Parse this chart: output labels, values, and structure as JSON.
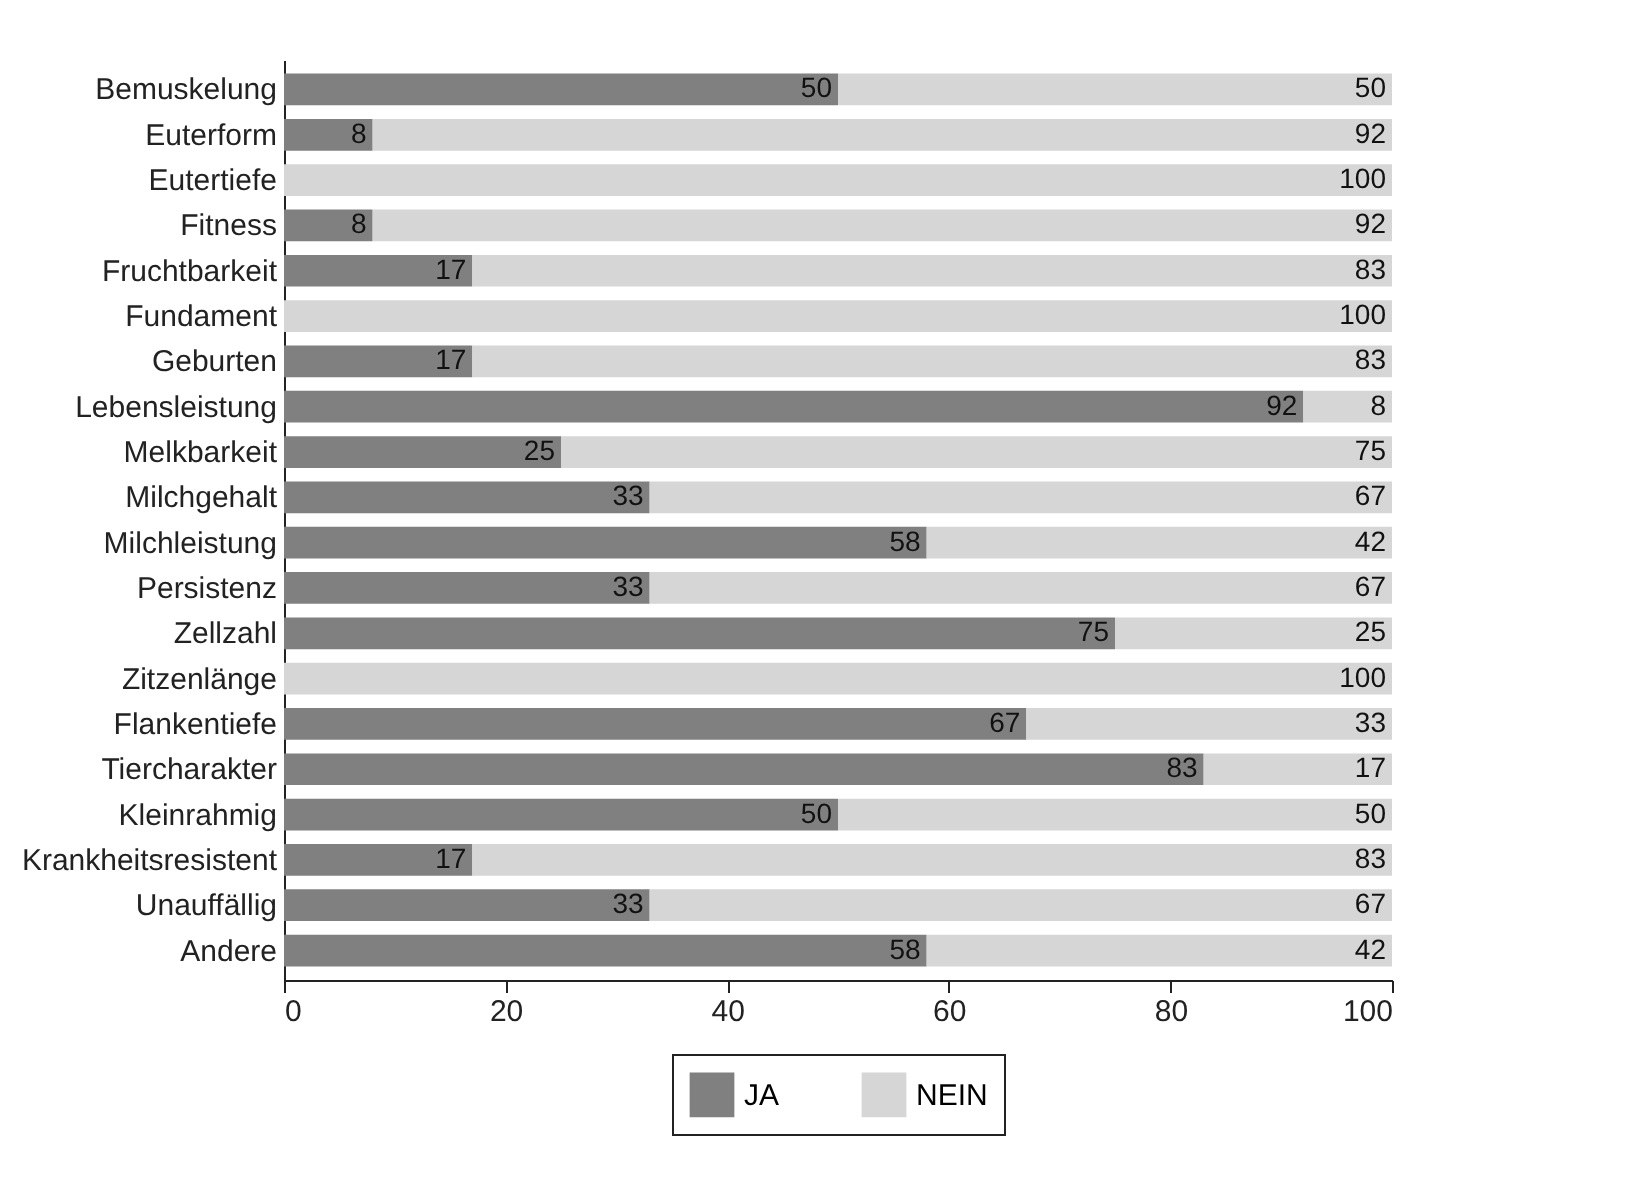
{
  "chart_data": {
    "type": "bar",
    "orientation": "horizontal",
    "stacked": true,
    "categories": [
      "Bemuskelung",
      "Euterform",
      "Eutertiefe",
      "Fitness",
      "Fruchtbarkeit",
      "Fundament",
      "Geburten",
      "Lebensleistung",
      "Melkbarkeit",
      "Milchgehalt",
      "Milchleistung",
      "Persistenz",
      "Zellzahl",
      "Zitzenlänge",
      "Flankentiefe",
      "Tiercharakter",
      "Kleinrahmig",
      "Krankheitsresistent",
      "Unauffällig",
      "Andere"
    ],
    "series": [
      {
        "name": "JA",
        "color": "#808080",
        "values": [
          50,
          8,
          0,
          8,
          17,
          0,
          17,
          92,
          25,
          33,
          58,
          33,
          75,
          0,
          67,
          83,
          50,
          17,
          33,
          58
        ],
        "value_labels": [
          "50",
          "8",
          null,
          "8",
          "17",
          null,
          "17",
          "92",
          "25",
          "33",
          "58",
          "33",
          "75",
          null,
          "67",
          "83",
          "50",
          "17",
          "33",
          "58"
        ]
      },
      {
        "name": "NEIN",
        "color": "#d6d6d6",
        "values": [
          50,
          92,
          100,
          92,
          83,
          100,
          83,
          8,
          75,
          67,
          42,
          67,
          25,
          100,
          33,
          17,
          50,
          83,
          67,
          42
        ],
        "value_labels": [
          "50",
          "92",
          "100",
          "92",
          "83",
          "100",
          "83",
          "8",
          "75",
          "67",
          "42",
          "67",
          "25",
          "100",
          "33",
          "17",
          "50",
          "83",
          "67",
          "42"
        ]
      }
    ],
    "xlim": [
      0,
      100
    ],
    "xticks": [
      0,
      20,
      40,
      60,
      80,
      100
    ],
    "grid": false,
    "legend": "bottom"
  }
}
